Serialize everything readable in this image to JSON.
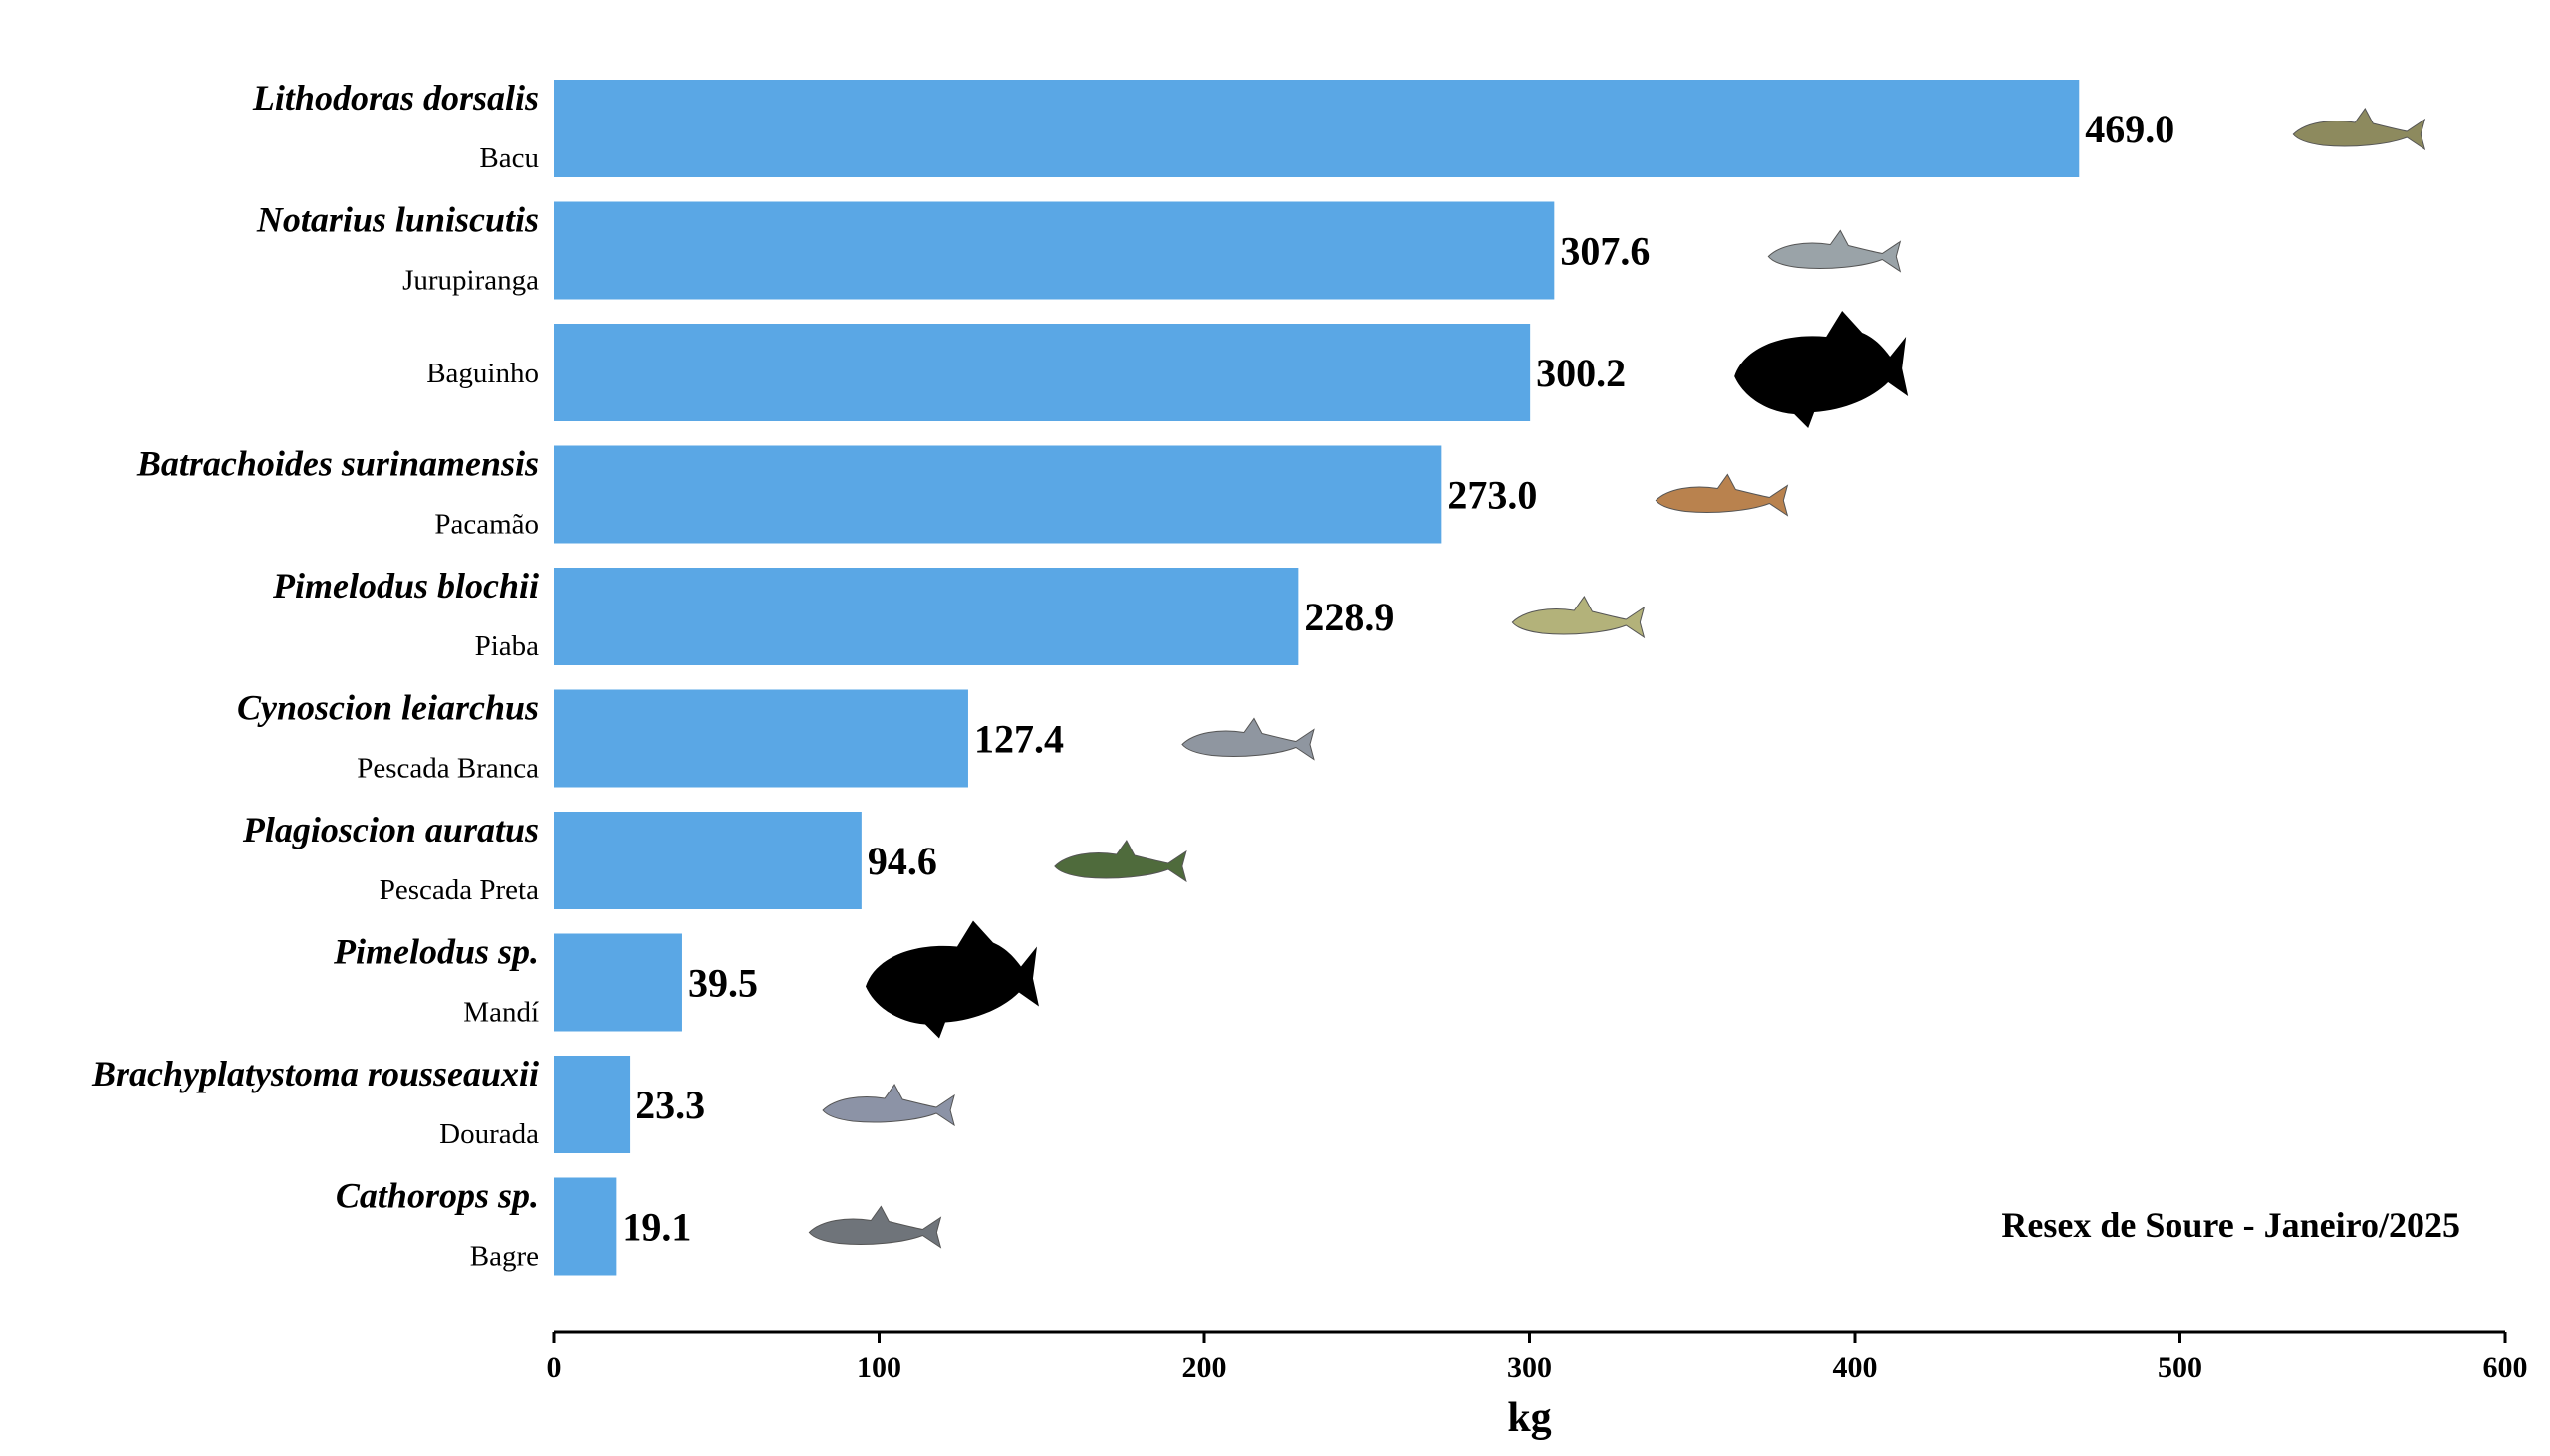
{
  "chart_data": {
    "type": "bar",
    "orientation": "horizontal",
    "bar_color": "#5aa7e5",
    "categories": [
      {
        "scientific": "Lithodoras dorsalis",
        "common": "Bacu",
        "value": 469.0,
        "value_label": "469.0",
        "icon": "fish-photo-icon",
        "icon_color": "#8d8a5e"
      },
      {
        "scientific": "Notarius luniscutis",
        "common": "Jurupiranga",
        "value": 307.6,
        "value_label": "307.6",
        "icon": "fish-photo-icon",
        "icon_color": "#9aa3a8"
      },
      {
        "scientific": "",
        "common": "Baguinho",
        "value": 300.2,
        "value_label": "300.2",
        "icon": "fish-silhouette-icon",
        "icon_color": "#000000"
      },
      {
        "scientific": "Batrachoides surinamensis",
        "common": "Pacamão",
        "value": 273.0,
        "value_label": "273.0",
        "icon": "fish-photo-icon",
        "icon_color": "#b9824e"
      },
      {
        "scientific": "Pimelodus blochii",
        "common": "Piaba",
        "value": 228.9,
        "value_label": "228.9",
        "icon": "fish-photo-icon",
        "icon_color": "#b3b27a"
      },
      {
        "scientific": "Cynoscion leiarchus",
        "common": "Pescada Branca",
        "value": 127.4,
        "value_label": "127.4",
        "icon": "fish-photo-icon",
        "icon_color": "#8f96a0"
      },
      {
        "scientific": "Plagioscion auratus",
        "common": "Pescada Preta",
        "value": 94.6,
        "value_label": "94.6",
        "icon": "fish-photo-icon",
        "icon_color": "#4f6b3c"
      },
      {
        "scientific": "Pimelodus sp.",
        "common": "Mandí",
        "value": 39.5,
        "value_label": "39.5",
        "icon": "fish-silhouette-icon",
        "icon_color": "#000000"
      },
      {
        "scientific": "Brachyplatystoma rousseauxii",
        "common": "Dourada",
        "value": 23.3,
        "value_label": "23.3",
        "icon": "fish-photo-icon",
        "icon_color": "#8c93a6"
      },
      {
        "scientific": "Cathorops sp.",
        "common": "Bagre",
        "value": 19.1,
        "value_label": "19.1",
        "icon": "fish-photo-icon",
        "icon_color": "#6f747a"
      }
    ],
    "xlabel": "kg",
    "xlim": [
      0,
      600
    ],
    "xticks": [
      "0",
      "100",
      "200",
      "300",
      "400",
      "500",
      "600"
    ],
    "grid": false,
    "annotation": "Resex de Soure - Janeiro/2025"
  }
}
